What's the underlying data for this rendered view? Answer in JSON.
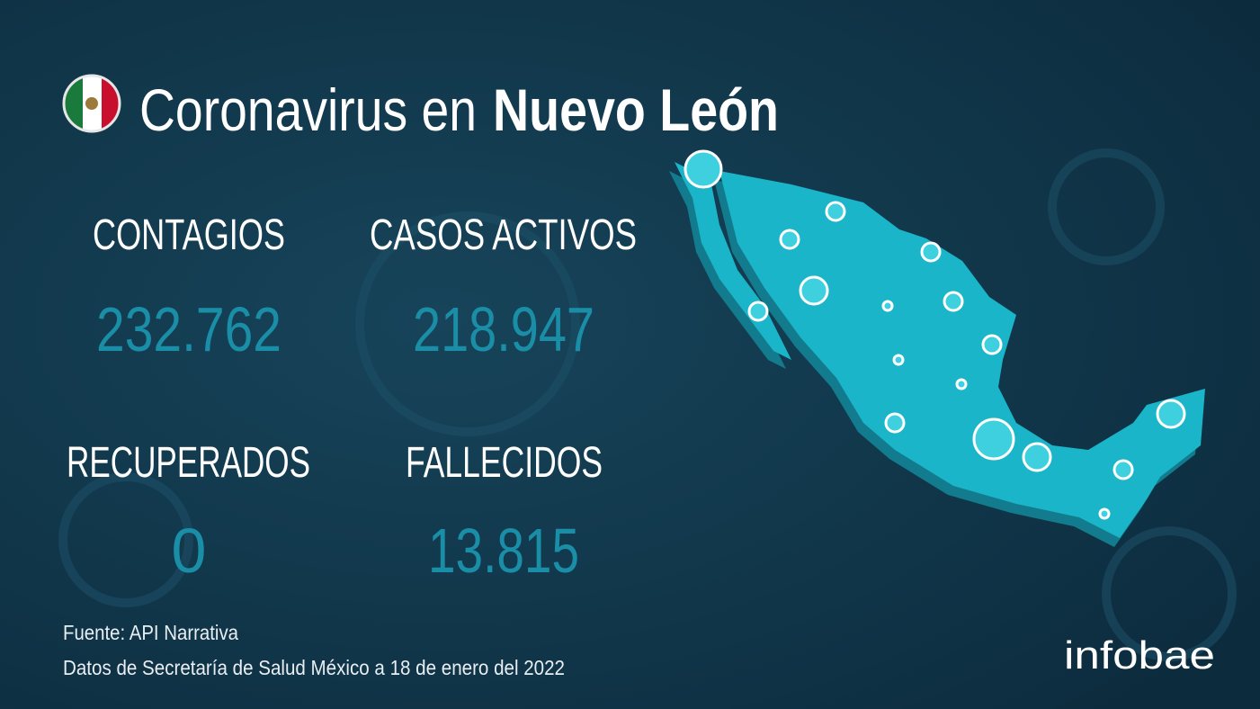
{
  "header": {
    "title_regular": "Coronavirus en",
    "title_bold": "Nuevo León"
  },
  "stats": [
    {
      "label": "CONTAGIOS",
      "value": "232.762"
    },
    {
      "label": "CASOS ACTIVOS",
      "value": "218.947"
    },
    {
      "label": "RECUPERADOS",
      "value": "0"
    },
    {
      "label": "FALLECIDOS",
      "value": "13.815"
    }
  ],
  "footer": {
    "source": "Fuente: API Narrativa",
    "note": "Datos de Secretaría de Salud México a 18 de enero del 2022"
  },
  "brand": "infobae"
}
